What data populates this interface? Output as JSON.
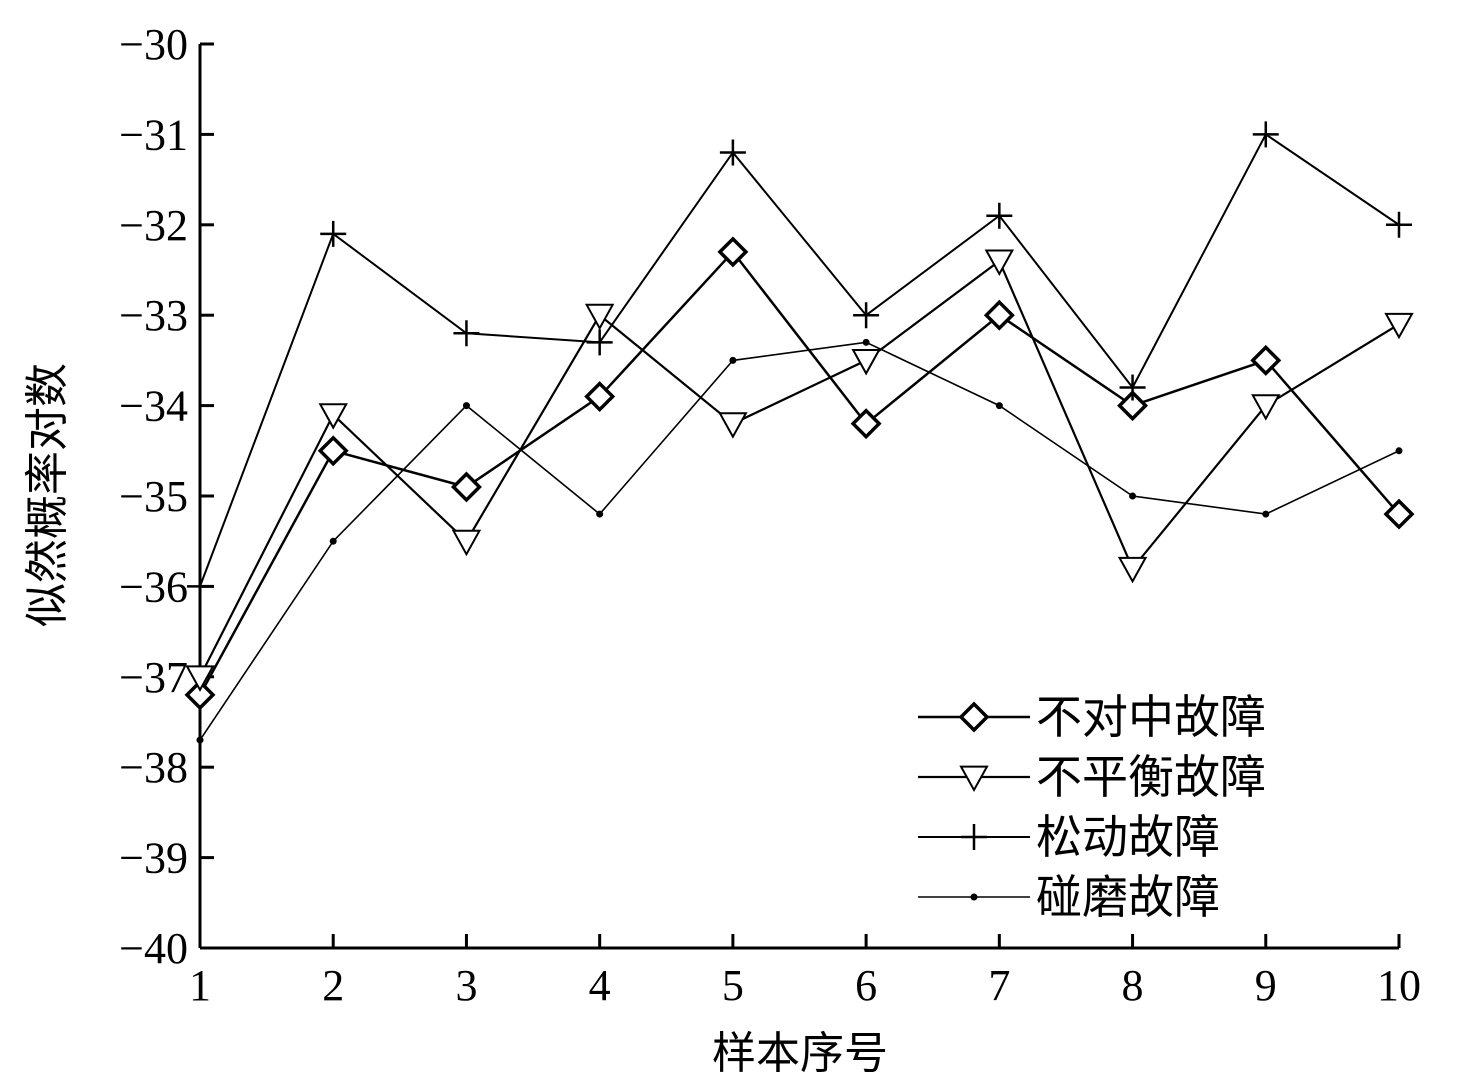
{
  "chart_data": {
    "type": "line",
    "xlabel": "样本序号",
    "ylabel": "似然概率对数",
    "x": [
      1,
      2,
      3,
      4,
      5,
      6,
      7,
      8,
      9,
      10
    ],
    "xlim": [
      1,
      10
    ],
    "ylim": [
      -40,
      -30
    ],
    "xticks": [
      "1",
      "2",
      "3",
      "4",
      "5",
      "6",
      "7",
      "8",
      "9",
      "10"
    ],
    "yticks": [
      "−30",
      "−31",
      "−32",
      "−33",
      "−34",
      "−35",
      "−36",
      "−37",
      "−38",
      "−39",
      "−40"
    ],
    "ytick_values": [
      -30,
      -31,
      -32,
      -33,
      -34,
      -35,
      -36,
      -37,
      -38,
      -39,
      -40
    ],
    "grid": false,
    "legend_position": "bottom-right",
    "series": [
      {
        "name": "不对中故障",
        "marker": "diamond",
        "color": "#000000",
        "values": [
          -37.2,
          -34.5,
          -34.9,
          -33.9,
          -32.3,
          -34.2,
          -33.0,
          -34.0,
          -33.5,
          -35.2
        ]
      },
      {
        "name": "不平衡故障",
        "marker": "triangle-down",
        "color": "#000000",
        "values": [
          -37.0,
          -34.1,
          -35.5,
          -33.0,
          -34.2,
          -33.5,
          -32.4,
          -35.8,
          -34.0,
          -33.1
        ]
      },
      {
        "name": "松动故障",
        "marker": "plus",
        "color": "#000000",
        "values": [
          -36.0,
          -32.1,
          -33.2,
          -33.3,
          -31.2,
          -33.0,
          -31.9,
          -33.8,
          -31.0,
          -32.0
        ]
      },
      {
        "name": "碰磨故障",
        "marker": "dot",
        "color": "#000000",
        "values": [
          -37.7,
          -35.5,
          -34.0,
          -35.2,
          -33.5,
          -33.3,
          -34.0,
          -35.0,
          -35.2,
          -34.5
        ]
      }
    ]
  }
}
